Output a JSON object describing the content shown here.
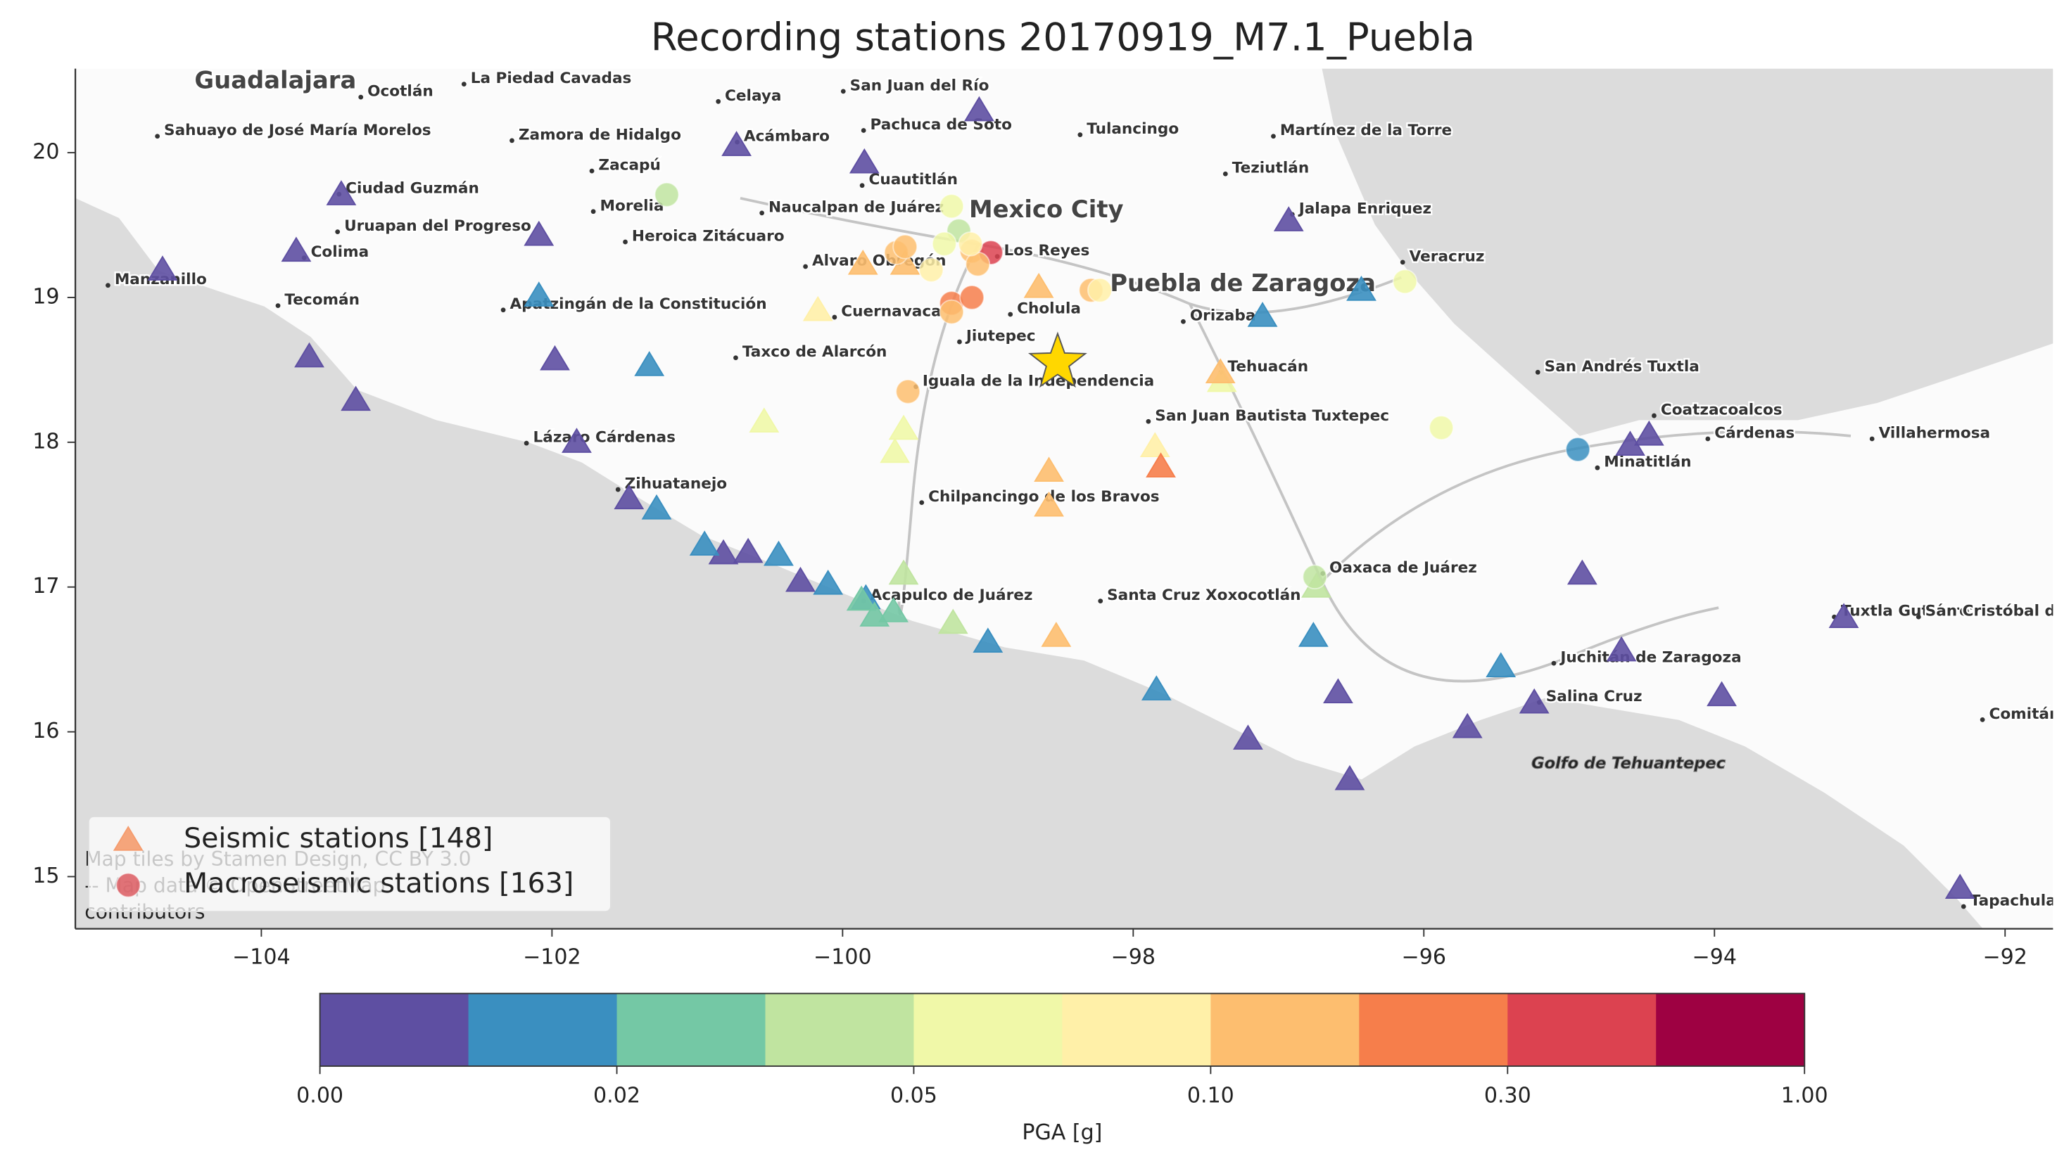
{
  "chart_data": {
    "type": "scatter",
    "title": "Recording stations 20170919_M7.1_Puebla",
    "xlim": [
      -105.28,
      -91.67
    ],
    "ylim": [
      14.64,
      20.58
    ],
    "xticks": [
      {
        "value": -104,
        "label": "−104"
      },
      {
        "value": -102,
        "label": "−102"
      },
      {
        "value": -100,
        "label": "−100"
      },
      {
        "value": -98,
        "label": "−98"
      },
      {
        "value": -96,
        "label": "−96"
      },
      {
        "value": -94,
        "label": "−94"
      },
      {
        "value": -92,
        "label": "−92"
      }
    ],
    "yticks": [
      15,
      16,
      17,
      18,
      19,
      20
    ],
    "legend": "lower left",
    "series": [
      {
        "name": "Seismic stations [148]",
        "marker": "triangle",
        "color": "#f59c6e",
        "x": [
          -104.68,
          -103.76,
          -103.45,
          -103.67,
          -103.35,
          -102.09,
          -101.98,
          -101.83,
          -101.47,
          -100.73,
          -99.85,
          -99.06,
          -96.93,
          -100.82,
          -100.65,
          -100.29,
          -94.91,
          -94.64,
          -94.58,
          -94.45,
          -93.11,
          -93.95,
          -95.24,
          -95.7,
          -96.59,
          -97.21,
          -96.51,
          -92.31,
          -102.09,
          -101.33,
          -101.28,
          -100.95,
          -100.44,
          -100.1,
          -99.84,
          -99.0,
          -97.84,
          -96.76,
          -96.43,
          -97.11,
          -95.47,
          -99.65,
          -99.87,
          -99.78,
          -99.58,
          -99.24,
          -96.74,
          -100.54,
          -99.58,
          -99.64,
          -100.17,
          -97.39,
          -97.85,
          -99.86,
          -99.57,
          -98.65,
          -98.58,
          -98.58,
          -98.53,
          -97.4,
          -97.81
        ],
        "y": [
          19.19,
          19.32,
          19.71,
          18.59,
          18.29,
          19.43,
          18.57,
          18.0,
          17.61,
          20.05,
          19.93,
          20.29,
          19.53,
          17.23,
          17.24,
          17.04,
          17.09,
          16.56,
          17.98,
          18.05,
          16.79,
          16.25,
          16.2,
          16.03,
          16.27,
          15.95,
          15.67,
          14.92,
          19.01,
          18.53,
          17.54,
          17.29,
          17.22,
          17.02,
          16.92,
          16.62,
          16.29,
          16.66,
          19.05,
          18.87,
          16.45,
          16.83,
          16.91,
          16.8,
          17.09,
          16.75,
          17.0,
          18.14,
          18.09,
          17.93,
          18.91,
          18.42,
          17.97,
          19.23,
          19.23,
          19.07,
          17.8,
          17.56,
          16.66,
          18.48,
          17.83
        ],
        "values": [
          0.005,
          0.005,
          0.005,
          0.005,
          0.005,
          0.005,
          0.005,
          0.005,
          0.005,
          0.005,
          0.005,
          0.005,
          0.005,
          0.005,
          0.005,
          0.005,
          0.005,
          0.005,
          0.005,
          0.005,
          0.005,
          0.005,
          0.005,
          0.005,
          0.005,
          0.005,
          0.005,
          0.005,
          0.015,
          0.015,
          0.015,
          0.015,
          0.015,
          0.015,
          0.015,
          0.015,
          0.015,
          0.015,
          0.015,
          0.015,
          0.015,
          0.025,
          0.025,
          0.025,
          0.04,
          0.04,
          0.04,
          0.06,
          0.06,
          0.06,
          0.085,
          0.06,
          0.085,
          0.15,
          0.15,
          0.15,
          0.15,
          0.15,
          0.15,
          0.15,
          0.25
        ]
      },
      {
        "name": "Macroseismic stations [163]",
        "marker": "circle",
        "color": "#dc5a60",
        "x": [
          -101.21,
          -99.25,
          -99.2,
          -99.3,
          -99.11,
          -98.98,
          -99.63,
          -99.57,
          -99.25,
          -99.11,
          -99.25,
          -98.29,
          -98.23,
          -99.55,
          -96.13,
          -95.88,
          -96.75,
          -94.94,
          -99.07,
          -99.12,
          -99.39
        ],
        "y": [
          19.71,
          19.63,
          19.46,
          19.37,
          19.32,
          19.31,
          19.31,
          19.35,
          18.96,
          19.0,
          18.9,
          19.05,
          19.05,
          18.35,
          19.11,
          18.1,
          17.07,
          17.95,
          19.23,
          19.37,
          19.19
        ],
        "values": [
          0.04,
          0.06,
          0.04,
          0.06,
          0.15,
          0.4,
          0.15,
          0.15,
          0.25,
          0.25,
          0.15,
          0.15,
          0.085,
          0.15,
          0.06,
          0.06,
          0.04,
          0.015,
          0.15,
          0.085,
          0.085
        ]
      }
    ],
    "epicenter": {
      "x": -98.52,
      "y": 18.55,
      "color": "#ffd700"
    },
    "colorbar": {
      "label": "PGA [g]",
      "bins": [
        0,
        0.01,
        0.02,
        0.03,
        0.05,
        0.07,
        0.1,
        0.2,
        0.3,
        0.5,
        1
      ],
      "colors": [
        "#5e4fa2",
        "#3a8fc0",
        "#74c8a5",
        "#c0e4a0",
        "#f0f8a8",
        "#fff0a8",
        "#fdbe6f",
        "#f67e4b",
        "#dc4250",
        "#9e0142"
      ],
      "ticks": [
        {
          "value": 0,
          "label": "0.00"
        },
        {
          "value": 0.02,
          "label": "0.02"
        },
        {
          "value": 0.05,
          "label": "0.05"
        },
        {
          "value": 0.1,
          "label": "0.10"
        },
        {
          "value": 0.3,
          "label": "0.30"
        },
        {
          "value": 1,
          "label": "1.00"
        }
      ]
    },
    "cities": [
      {
        "name": "Guadalajara",
        "x": -104.46,
        "y": 20.49,
        "bold": true
      },
      {
        "name": "Ocotlán",
        "x": -103.27,
        "y": 20.42
      },
      {
        "name": "La Piedad Cavadas",
        "x": -102.56,
        "y": 20.51
      },
      {
        "name": "Celaya",
        "x": -100.81,
        "y": 20.39
      },
      {
        "name": "San Juan del Río",
        "x": -99.95,
        "y": 20.46
      },
      {
        "name": "Sahuayo de José María Morelos",
        "x": -104.67,
        "y": 20.15
      },
      {
        "name": "Zamora de Hidalgo",
        "x": -102.23,
        "y": 20.12
      },
      {
        "name": "Acámbaro",
        "x": -100.68,
        "y": 20.11
      },
      {
        "name": "Pachuca de Soto",
        "x": -99.81,
        "y": 20.19
      },
      {
        "name": "Tulancingo",
        "x": -98.32,
        "y": 20.16
      },
      {
        "name": "Martínez de la Torre",
        "x": -96.99,
        "y": 20.15
      },
      {
        "name": "Zacapú",
        "x": -101.68,
        "y": 19.91
      },
      {
        "name": "Teziutlán",
        "x": -97.32,
        "y": 19.89
      },
      {
        "name": "Ciudad Guzmán",
        "x": -103.42,
        "y": 19.75
      },
      {
        "name": "Cuautitlán",
        "x": -99.82,
        "y": 19.81
      },
      {
        "name": "Morelia",
        "x": -101.67,
        "y": 19.63
      },
      {
        "name": "Naucalpan de Juárez",
        "x": -100.51,
        "y": 19.62
      },
      {
        "name": "Mexico City",
        "x": -99.13,
        "y": 19.6,
        "bold": true
      },
      {
        "name": "Jalapa Enriquez",
        "x": -96.86,
        "y": 19.61
      },
      {
        "name": "Uruapan del Progreso",
        "x": -103.43,
        "y": 19.49
      },
      {
        "name": "Heroica Zitácuaro",
        "x": -101.45,
        "y": 19.42
      },
      {
        "name": "Colima",
        "x": -103.66,
        "y": 19.31
      },
      {
        "name": "Los Reyes",
        "x": -98.89,
        "y": 19.32
      },
      {
        "name": "Veracruz",
        "x": -96.1,
        "y": 19.28
      },
      {
        "name": "Manzanillo",
        "x": -105.01,
        "y": 19.12
      },
      {
        "name": "Alvaro Obregón",
        "x": -100.21,
        "y": 19.25
      },
      {
        "name": "Puebla de Zaragoza",
        "x": -98.16,
        "y": 19.09,
        "bold": true
      },
      {
        "name": "Tecomán",
        "x": -103.84,
        "y": 18.98
      },
      {
        "name": "Apatzingán de la Constitución",
        "x": -102.29,
        "y": 18.95
      },
      {
        "name": "Cholula",
        "x": -98.8,
        "y": 18.92
      },
      {
        "name": "Cuernavaca",
        "x": -100.01,
        "y": 18.9
      },
      {
        "name": "Orizaba",
        "x": -97.61,
        "y": 18.87
      },
      {
        "name": "Jiutepec",
        "x": -99.15,
        "y": 18.73
      },
      {
        "name": "Taxco de Alarcón",
        "x": -100.69,
        "y": 18.62
      },
      {
        "name": "San Andrés Tuxtla",
        "x": -95.17,
        "y": 18.52
      },
      {
        "name": "Tehuacán",
        "x": -97.35,
        "y": 18.52
      },
      {
        "name": "Iguala de la Independencia",
        "x": -99.45,
        "y": 18.42
      },
      {
        "name": "Coatzacoalcos",
        "x": -94.37,
        "y": 18.22
      },
      {
        "name": "San Juan Bautista Tuxtepec",
        "x": -97.85,
        "y": 18.18
      },
      {
        "name": "Cárdenas",
        "x": -94.0,
        "y": 18.06
      },
      {
        "name": "Villahermosa",
        "x": -92.87,
        "y": 18.06
      },
      {
        "name": "Lázaro Cárdenas",
        "x": -102.13,
        "y": 18.03
      },
      {
        "name": "Minatitlán",
        "x": -94.76,
        "y": 17.86
      },
      {
        "name": "Zihuatanejo",
        "x": -101.5,
        "y": 17.71
      },
      {
        "name": "Chilpancingo de los Bravos",
        "x": -99.41,
        "y": 17.62
      },
      {
        "name": "Oaxaca de Juárez",
        "x": -96.65,
        "y": 17.13
      },
      {
        "name": "Acapulco de Juárez",
        "x": -99.81,
        "y": 16.94
      },
      {
        "name": "Santa Cruz Xoxocotlán",
        "x": -98.18,
        "y": 16.94
      },
      {
        "name": "Tuxtla Gutiérrez",
        "x": -93.13,
        "y": 16.83
      },
      {
        "name": "San Cristóbal de",
        "x": -92.55,
        "y": 16.83
      },
      {
        "name": "Juchitán de Zaragoza",
        "x": -95.06,
        "y": 16.51
      },
      {
        "name": "Salina Cruz",
        "x": -95.16,
        "y": 16.24
      },
      {
        "name": "Comitán",
        "x": -92.11,
        "y": 16.12
      },
      {
        "name": "Tapachula",
        "x": -92.24,
        "y": 14.83
      }
    ],
    "water_labels": [
      {
        "name": "Golfo de Tehuantepec",
        "x": -95.26,
        "y": 15.78
      }
    ],
    "attribution": [
      "Map tiles by Stamen Design, CC BY 3.0",
      "-- Map data © OpenStreetMap",
      "contributors"
    ]
  }
}
